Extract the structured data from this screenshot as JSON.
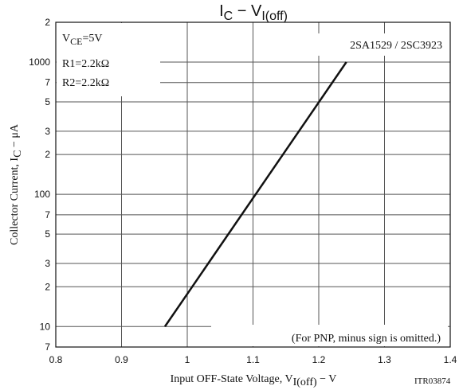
{
  "chart_data": {
    "type": "line",
    "title": [
      "I",
      "C",
      " − V",
      "I(off)"
    ],
    "xlabel": [
      "Input OFF-State Voltage, V",
      "I(off)",
      " − V"
    ],
    "ylabel": [
      "Collector Current, I",
      "C",
      " − μA"
    ],
    "annotations": {
      "condition": [
        "V",
        "CE",
        "=5V"
      ],
      "r1": "R1=2.2kΩ",
      "r2": "R2=2.2kΩ",
      "part": "2SA1529 / 2SC3923",
      "note": "(For PNP, minus sign is omitted.)",
      "code": "ITR03874"
    },
    "x": [
      0.966,
      1.242
    ],
    "series": [
      {
        "name": "IC",
        "color": "#111111",
        "values": [
          10,
          1000
        ]
      }
    ],
    "xlim": [
      0.8,
      1.4
    ],
    "xticks": [
      0.8,
      0.9,
      1.0,
      1.1,
      1.2,
      1.3,
      1.4
    ],
    "ylim": [
      7,
      2000
    ],
    "ylog": true,
    "yticks": [
      7,
      10,
      {
        "value": 20,
        "label": "2"
      },
      {
        "value": 30,
        "label": "3"
      },
      {
        "value": 50,
        "label": "5"
      },
      {
        "value": 70,
        "label": "7"
      },
      100,
      {
        "value": 200,
        "label": "2"
      },
      {
        "value": 300,
        "label": "3"
      },
      {
        "value": 500,
        "label": "5"
      },
      {
        "value": 700,
        "label": "7"
      },
      1000,
      {
        "value": 2000,
        "label": "2"
      }
    ],
    "grid": true
  }
}
